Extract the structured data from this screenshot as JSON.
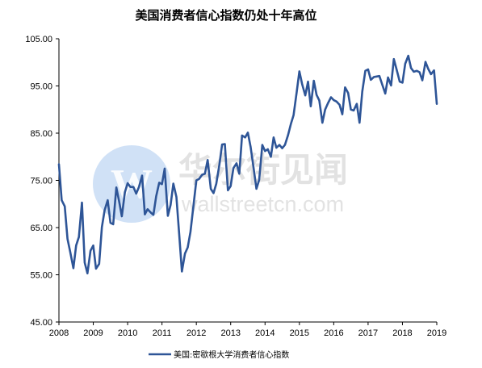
{
  "watermark": {
    "cn": "华尔街见闻",
    "en": "wallstreetcn.com",
    "logo_color": "#a9c8ee"
  },
  "chart_data": {
    "type": "line",
    "title": "美国消费者信心指数仍处十年高位",
    "xlabel": "",
    "ylabel": "",
    "xlim": [
      2008.0,
      2019.0
    ],
    "ylim": [
      45,
      105
    ],
    "x_ticks": [
      "2008",
      "2009",
      "2010",
      "2011",
      "2012",
      "2013",
      "2014",
      "2015",
      "2016",
      "2017",
      "2018",
      "2019"
    ],
    "y_ticks": [
      "45.00",
      "55.00",
      "65.00",
      "75.00",
      "85.00",
      "95.00",
      "105.00"
    ],
    "grid": false,
    "legend_position": "bottom",
    "series": [
      {
        "name": "美国:密歇根大学消费者信心指数",
        "color": "#2e5597",
        "x": [
          2008.0,
          2008.08,
          2008.17,
          2008.25,
          2008.33,
          2008.42,
          2008.5,
          2008.58,
          2008.67,
          2008.75,
          2008.83,
          2008.92,
          2009.0,
          2009.08,
          2009.17,
          2009.25,
          2009.33,
          2009.42,
          2009.5,
          2009.58,
          2009.67,
          2009.75,
          2009.83,
          2009.92,
          2010.0,
          2010.08,
          2010.17,
          2010.25,
          2010.33,
          2010.42,
          2010.5,
          2010.58,
          2010.67,
          2010.75,
          2010.83,
          2010.92,
          2011.0,
          2011.08,
          2011.17,
          2011.25,
          2011.33,
          2011.42,
          2011.5,
          2011.58,
          2011.67,
          2011.75,
          2011.83,
          2011.92,
          2012.0,
          2012.08,
          2012.17,
          2012.25,
          2012.33,
          2012.42,
          2012.5,
          2012.58,
          2012.67,
          2012.75,
          2012.83,
          2012.92,
          2013.0,
          2013.08,
          2013.17,
          2013.25,
          2013.33,
          2013.42,
          2013.5,
          2013.58,
          2013.67,
          2013.75,
          2013.83,
          2013.92,
          2014.0,
          2014.08,
          2014.17,
          2014.25,
          2014.33,
          2014.42,
          2014.5,
          2014.58,
          2014.67,
          2014.75,
          2014.83,
          2014.92,
          2015.0,
          2015.08,
          2015.17,
          2015.25,
          2015.33,
          2015.42,
          2015.5,
          2015.58,
          2015.67,
          2015.75,
          2015.83,
          2015.92,
          2016.0,
          2016.08,
          2016.17,
          2016.25,
          2016.33,
          2016.42,
          2016.5,
          2016.58,
          2016.67,
          2016.75,
          2016.83,
          2016.92,
          2017.0,
          2017.08,
          2017.17,
          2017.25,
          2017.33,
          2017.42,
          2017.5,
          2017.58,
          2017.67,
          2017.75,
          2017.83,
          2017.92,
          2018.0,
          2018.08,
          2018.17,
          2018.25,
          2018.33,
          2018.42,
          2018.5,
          2018.58,
          2018.67,
          2018.75,
          2018.83,
          2018.92,
          2019.0
        ],
        "values": [
          78.4,
          70.8,
          69.5,
          62.6,
          59.8,
          56.4,
          61.2,
          63.0,
          70.3,
          57.6,
          55.3,
          60.1,
          61.2,
          56.3,
          57.3,
          65.1,
          68.7,
          70.8,
          66.0,
          65.7,
          73.5,
          70.6,
          67.4,
          72.5,
          74.4,
          73.6,
          73.6,
          72.2,
          73.6,
          76.0,
          67.8,
          68.9,
          68.2,
          67.7,
          71.6,
          74.5,
          74.2,
          77.5,
          67.5,
          69.8,
          74.3,
          71.5,
          63.7,
          55.7,
          59.5,
          60.8,
          64.1,
          69.9,
          75.0,
          75.3,
          76.2,
          76.4,
          79.3,
          73.2,
          72.3,
          74.3,
          78.3,
          82.6,
          82.7,
          72.9,
          73.8,
          77.6,
          78.6,
          76.4,
          84.5,
          84.1,
          85.1,
          82.1,
          77.5,
          73.2,
          75.1,
          82.5,
          81.2,
          81.6,
          80.0,
          84.1,
          81.9,
          82.5,
          81.8,
          82.5,
          84.6,
          86.9,
          88.8,
          93.6,
          98.1,
          95.4,
          93.0,
          95.9,
          90.7,
          96.1,
          93.1,
          91.9,
          87.2,
          90.0,
          91.3,
          92.6,
          92.0,
          91.7,
          91.0,
          89.0,
          94.7,
          93.5,
          90.0,
          89.8,
          91.2,
          87.2,
          93.8,
          98.2,
          98.5,
          96.3,
          96.9,
          97.0,
          97.1,
          95.1,
          93.4,
          96.8,
          95.1,
          100.7,
          98.5,
          95.9,
          95.7,
          99.7,
          101.4,
          98.8,
          98.0,
          98.2,
          97.9,
          96.2,
          100.1,
          98.6,
          97.5,
          98.3,
          91.2
        ]
      }
    ]
  }
}
